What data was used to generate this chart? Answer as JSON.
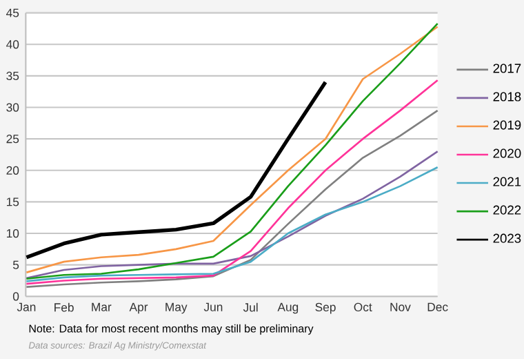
{
  "chart_data": {
    "type": "line",
    "categories": [
      "Jan",
      "Feb",
      "Mar",
      "Apr",
      "May",
      "Jun",
      "Jul",
      "Aug",
      "Sep",
      "Oct",
      "Nov",
      "Dec"
    ],
    "series": [
      {
        "name": "2017",
        "color": "#808080",
        "values": [
          1.5,
          1.9,
          2.2,
          2.4,
          2.7,
          3.2,
          5.8,
          11.5,
          17,
          22,
          25.5,
          29.5
        ]
      },
      {
        "name": "2018",
        "color": "#8064a2",
        "values": [
          2.9,
          4.2,
          4.8,
          5.0,
          5.2,
          5.2,
          6.4,
          9.5,
          12.8,
          15.5,
          19,
          23
        ]
      },
      {
        "name": "2019",
        "color": "#f79646",
        "values": [
          3.8,
          5.5,
          6.2,
          6.6,
          7.5,
          8.8,
          14.5,
          20,
          25,
          34.5,
          38.5,
          42.8
        ]
      },
      {
        "name": "2020",
        "color": "#ff3399",
        "values": [
          2.0,
          2.5,
          2.8,
          2.9,
          3.0,
          3.3,
          7.2,
          14,
          20,
          25,
          29.5,
          34.3
        ]
      },
      {
        "name": "2021",
        "color": "#4bacc6",
        "values": [
          2.4,
          3.0,
          3.3,
          3.4,
          3.5,
          3.6,
          5.5,
          10,
          13,
          15,
          17.5,
          20.5
        ]
      },
      {
        "name": "2022",
        "color": "#1a9e1a",
        "values": [
          2.8,
          3.4,
          3.6,
          4.3,
          5.3,
          6.3,
          10.3,
          17.5,
          24,
          31,
          37,
          43.3
        ]
      },
      {
        "name": "2023",
        "color": "#000000",
        "values": [
          6.2,
          8.4,
          9.8,
          10.2,
          10.6,
          11.6,
          15.8,
          25,
          34,
          null,
          null,
          null
        ]
      }
    ],
    "ylim": [
      0,
      45
    ],
    "yticks": [
      0,
      5,
      10,
      15,
      20,
      25,
      30,
      35,
      40,
      45
    ],
    "grid": "y",
    "legend": "right",
    "marker": "none",
    "line_style": "solid",
    "annotations": [
      "Note: Data for most recent months may still be preliminary",
      "*Data sources: Brazil Ag Ministry/Comexstat*"
    ]
  }
}
